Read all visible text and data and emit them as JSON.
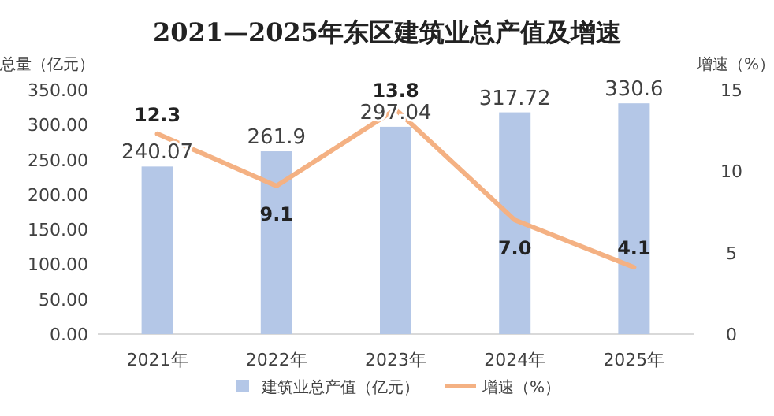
{
  "chart_data": {
    "type": "bar",
    "title": "2021—2025年东区建筑业总产值及增速",
    "ylabel": "总量（亿元）",
    "y2label": "增速（%）",
    "categories": [
      "2021年",
      "2022年",
      "2023年",
      "2024年",
      "2025年"
    ],
    "series": [
      {
        "name": "建筑业总产值（亿元）",
        "color": "#b4c7e7",
        "values": [
          240.07,
          261.9,
          297.04,
          317.72,
          330.6
        ],
        "value_labels": [
          "240.07",
          "261.9",
          "297.04",
          "317.72",
          "330.6"
        ]
      },
      {
        "name": "增速（%）",
        "type": "line",
        "axis": "y2",
        "color": "#f4b183",
        "values": [
          12.3,
          9.1,
          13.8,
          7.0,
          4.1
        ],
        "value_labels": [
          "12.3",
          "9.1",
          "13.8",
          "7.0",
          "4.1"
        ]
      }
    ],
    "ylim": [
      0,
      350
    ],
    "yticks": [
      {
        "value": 0,
        "label": "0.00"
      },
      {
        "value": 50,
        "label": "50.00"
      },
      {
        "value": 100,
        "label": "100.00"
      },
      {
        "value": 150,
        "label": "150.00"
      },
      {
        "value": 200,
        "label": "200.00"
      },
      {
        "value": 250,
        "label": "250.00"
      },
      {
        "value": 300,
        "label": "300.00"
      },
      {
        "value": 350,
        "label": "350.00"
      }
    ],
    "y2lim": [
      0,
      15
    ],
    "y2ticks": [
      0,
      5,
      10,
      15
    ],
    "legend": "bottom",
    "grid": false,
    "marker": "none"
  }
}
